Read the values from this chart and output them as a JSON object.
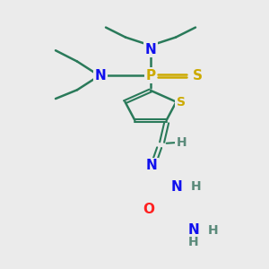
{
  "background_color": "#ebebeb",
  "bond_color": "#2a7a5a",
  "colors": {
    "N": "#1010ee",
    "P": "#ccaa00",
    "S": "#ccaa00",
    "O": "#ff2020",
    "C": "#2a7a5a",
    "H": "#5a8a7a"
  },
  "figsize": [
    3.0,
    3.0
  ],
  "dpi": 100
}
